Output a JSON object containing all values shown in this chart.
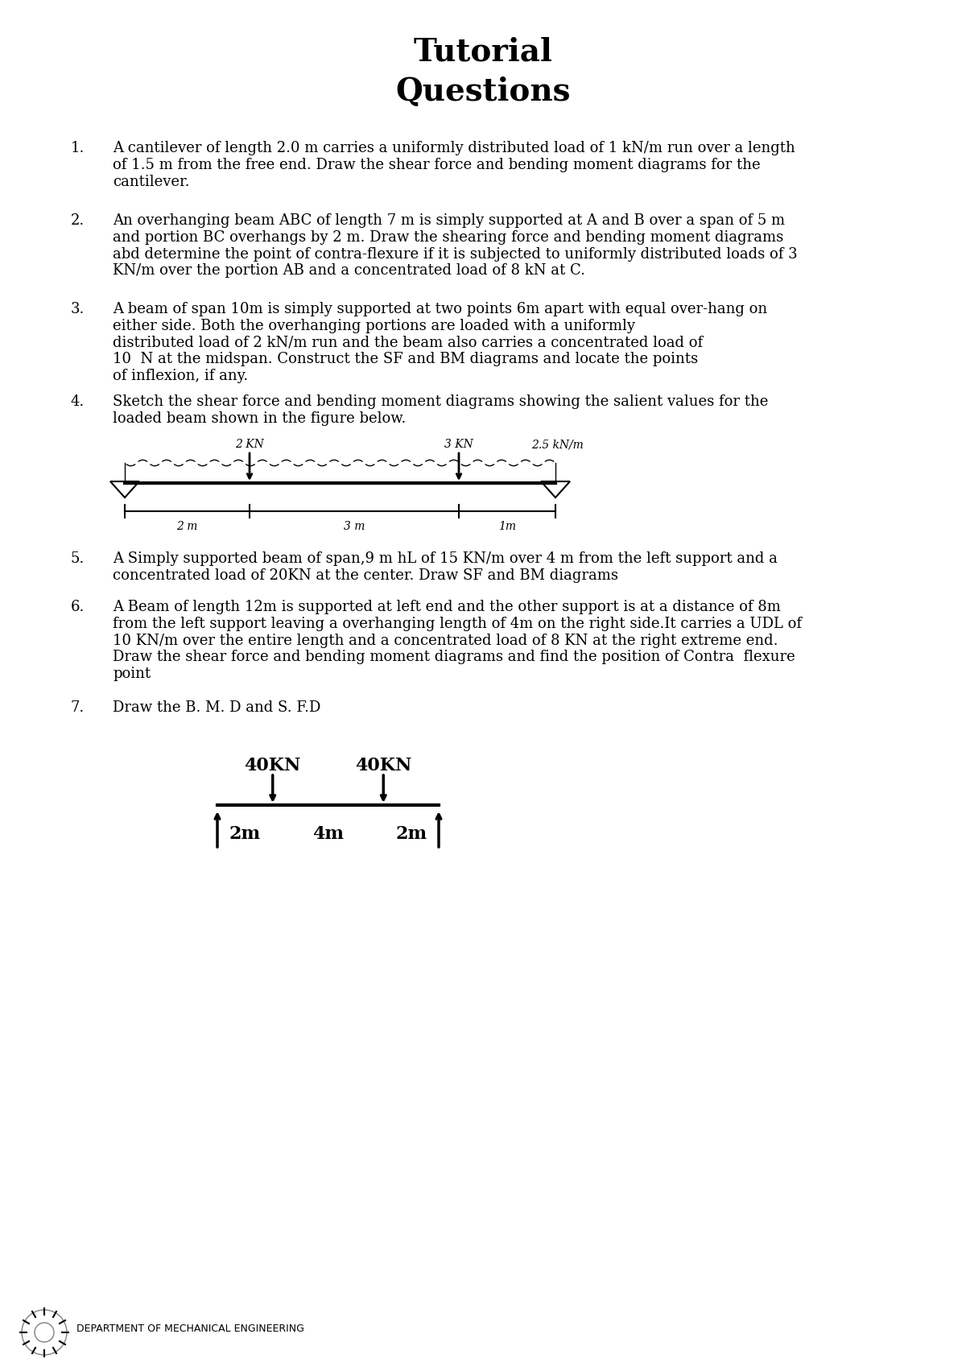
{
  "title_line1": "Tutorial",
  "title_line2": "Questions",
  "title_fontsize": 28,
  "title_fontfamily": "serif",
  "title_bold": true,
  "body_fontsize": 13,
  "body_fontfamily": "serif",
  "background_color": "#ffffff",
  "text_color": "#000000",
  "questions": [
    {
      "num": "1.",
      "text": "A cantilever of length 2.0 m carries a uniformly distributed load of 1 kN/m run over a length\nof 1.5 m from the free end. Draw the shear force and bending moment diagrams for the\ncantilever."
    },
    {
      "num": "2.",
      "text": "An overhanging beam ABC of length 7 m is simply supported at A and B over a span of 5 m\nand portion BC overhangs by 2 m. Draw the shearing force and bending moment diagrams\nabd determine the point of contra-flexure if it is subjected to uniformly distributed loads of 3\nKN/m over the portion AB and a concentrated load of 8 kN at C."
    },
    {
      "num": "3.",
      "text": "A beam of span 10m is simply supported at two points 6m apart with equal over-hang on\neither side. Both the overhanging portions are loaded with a uniformly\ndistributed load of 2 kN/m run and the beam also carries a concentrated load of\n10  N at the midspan. Construct the SF and BM diagrams and locate the points\nof inflexion, if any."
    },
    {
      "num": "4.",
      "text": "Sketch the shear force and bending moment diagrams showing the salient values for the\nloaded beam shown in the figure below."
    },
    {
      "num": "5.",
      "text": "A Simply supported beam of span,9 m hL of 15 KN/m over 4 m from the left support and a\nconcentrated load of 20KN at the center. Draw SF and BM diagrams"
    },
    {
      "num": "6.",
      "text": "A Beam of length 12m is supported at left end and the other support is at a distance of 8m\nfrom the left support leaving a overhanging length of 4m on the right side.It carries a UDL of\n10 KN/m over the entire length and a concentrated load of 8 KN at the right extreme end.\nDraw the shear force and bending moment diagrams and find the position of Contra flexure\npoint"
    },
    {
      "num": "7.",
      "text": "Draw the B. M. D and S. F.D"
    }
  ],
  "footer_text": "DEPARTMENT OF MECHANICAL ENGINEERING",
  "footer_fontsize": 9
}
